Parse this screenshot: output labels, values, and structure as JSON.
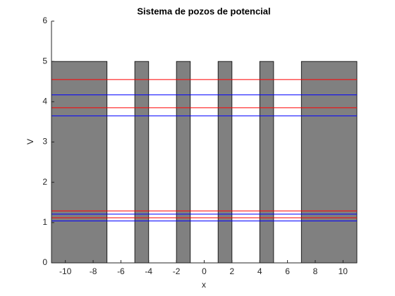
{
  "chart_data": {
    "type": "line",
    "title": "Sistema de pozos de potencial",
    "xlabel": "x",
    "ylabel": "V",
    "xlim": [
      -11,
      11
    ],
    "ylim": [
      0,
      6
    ],
    "xticks": [
      -10,
      -8,
      -6,
      -4,
      -2,
      0,
      2,
      4,
      6,
      8,
      10
    ],
    "yticks": [
      0,
      1,
      2,
      3,
      4,
      5,
      6
    ],
    "barriers": {
      "color": "#808080",
      "edges": [
        [
          -11,
          -7
        ],
        [
          -5,
          -4
        ],
        [
          -2,
          -1
        ],
        [
          1,
          2
        ],
        [
          4,
          5
        ],
        [
          7,
          11
        ]
      ],
      "heights": [
        5,
        5,
        5,
        5,
        5,
        5
      ]
    },
    "series": [
      {
        "color": "#ff0000",
        "x": [
          -11,
          11
        ],
        "values": [
          4.55,
          4.55
        ]
      },
      {
        "color": "#0000ff",
        "x": [
          -11,
          11
        ],
        "values": [
          4.17,
          4.17
        ]
      },
      {
        "color": "#ff0000",
        "x": [
          -11,
          11
        ],
        "values": [
          3.85,
          3.85
        ]
      },
      {
        "color": "#0000ff",
        "x": [
          -11,
          11
        ],
        "values": [
          3.65,
          3.65
        ]
      },
      {
        "color": "#ff0000",
        "x": [
          -11,
          11
        ],
        "values": [
          1.29,
          1.29
        ]
      },
      {
        "color": "#0000ff",
        "x": [
          -11,
          11
        ],
        "values": [
          1.21,
          1.21
        ]
      },
      {
        "color": "#ff0000",
        "x": [
          -11,
          11
        ],
        "values": [
          1.12,
          1.12
        ]
      },
      {
        "color": "#0000ff",
        "x": [
          -11,
          11
        ],
        "values": [
          1.04,
          1.04
        ]
      }
    ]
  }
}
